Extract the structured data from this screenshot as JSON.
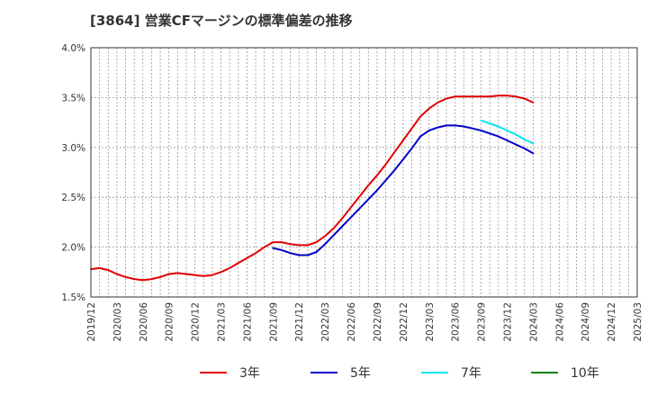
{
  "chart_data": {
    "type": "line",
    "title": "[3864]  営業CFマージンの標準偏差の推移",
    "xlabel": "",
    "ylabel": "",
    "ylim": [
      1.5,
      4.0
    ],
    "y_ticks": [
      "1.5%",
      "2.0%",
      "2.5%",
      "3.0%",
      "3.5%",
      "4.0%"
    ],
    "y_tick_values": [
      1.5,
      2.0,
      2.5,
      3.0,
      3.5,
      4.0
    ],
    "x_ticks": [
      "2019/12",
      "2020/03",
      "2020/06",
      "2020/09",
      "2020/12",
      "2021/03",
      "2021/06",
      "2021/09",
      "2021/12",
      "2022/03",
      "2022/06",
      "2022/09",
      "2022/12",
      "2023/03",
      "2023/06",
      "2023/09",
      "2023/12",
      "2024/03",
      "2024/06",
      "2024/09",
      "2024/12",
      "2025/03"
    ],
    "grid": true,
    "legend_position": "bottom",
    "series": [
      {
        "name": "3年",
        "color": "#e00000",
        "x": [
          "2019/12",
          "2020/01",
          "2020/02",
          "2020/03",
          "2020/04",
          "2020/05",
          "2020/06",
          "2020/07",
          "2020/08",
          "2020/09",
          "2020/10",
          "2020/11",
          "2020/12",
          "2021/01",
          "2021/02",
          "2021/03",
          "2021/04",
          "2021/05",
          "2021/06",
          "2021/07",
          "2021/08",
          "2021/09",
          "2021/10",
          "2021/11",
          "2021/12",
          "2022/01",
          "2022/02",
          "2022/03",
          "2022/04",
          "2022/05",
          "2022/06",
          "2022/07",
          "2022/08",
          "2022/09",
          "2022/10",
          "2022/11",
          "2022/12",
          "2023/01",
          "2023/02",
          "2023/03",
          "2023/04",
          "2023/05",
          "2023/06",
          "2023/07",
          "2023/08",
          "2023/09",
          "2023/10",
          "2023/11",
          "2023/12",
          "2024/01",
          "2024/02",
          "2024/03"
        ],
        "values": [
          1.78,
          1.79,
          1.77,
          1.73,
          1.7,
          1.68,
          1.67,
          1.68,
          1.7,
          1.73,
          1.74,
          1.73,
          1.72,
          1.71,
          1.72,
          1.75,
          1.79,
          1.84,
          1.89,
          1.94,
          2.0,
          2.05,
          2.05,
          2.03,
          2.02,
          2.02,
          2.05,
          2.11,
          2.19,
          2.29,
          2.4,
          2.51,
          2.62,
          2.72,
          2.83,
          2.95,
          3.07,
          3.19,
          3.31,
          3.39,
          3.45,
          3.49,
          3.51,
          3.51,
          3.51,
          3.51,
          3.51,
          3.52,
          3.52,
          3.51,
          3.49,
          3.45
        ]
      },
      {
        "name": "5年",
        "color": "#0000cc",
        "x": [
          "2021/09",
          "2021/10",
          "2021/11",
          "2021/12",
          "2022/01",
          "2022/02",
          "2022/03",
          "2022/04",
          "2022/05",
          "2022/06",
          "2022/07",
          "2022/08",
          "2022/09",
          "2022/10",
          "2022/11",
          "2022/12",
          "2023/01",
          "2023/02",
          "2023/03",
          "2023/04",
          "2023/05",
          "2023/06",
          "2023/07",
          "2023/08",
          "2023/09",
          "2023/10",
          "2023/11",
          "2023/12",
          "2024/01",
          "2024/02",
          "2024/03"
        ],
        "values": [
          1.99,
          1.97,
          1.94,
          1.92,
          1.92,
          1.95,
          2.03,
          2.12,
          2.21,
          2.3,
          2.39,
          2.48,
          2.57,
          2.67,
          2.77,
          2.88,
          2.99,
          3.11,
          3.17,
          3.2,
          3.22,
          3.22,
          3.21,
          3.19,
          3.17,
          3.14,
          3.11,
          3.07,
          3.03,
          2.99,
          2.94
        ]
      },
      {
        "name": "7年",
        "color": "#00e5ee",
        "x": [
          "2023/09",
          "2023/10",
          "2023/11",
          "2023/12",
          "2024/01",
          "2024/02",
          "2024/03"
        ],
        "values": [
          3.27,
          3.24,
          3.21,
          3.17,
          3.13,
          3.08,
          3.04
        ]
      },
      {
        "name": "10年",
        "color": "#008000",
        "x": [],
        "values": []
      }
    ]
  }
}
